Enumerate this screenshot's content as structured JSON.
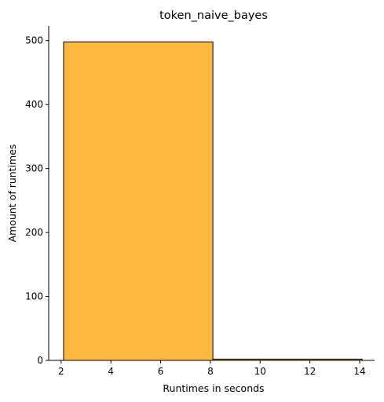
{
  "chart_data": {
    "type": "bar",
    "title": "token_naive_bayes",
    "xlabel": "Runtimes in seconds",
    "ylabel": "Amount of runtimes",
    "bins": [
      {
        "x0": 2.1,
        "x1": 8.1,
        "count": 498
      },
      {
        "x0": 8.1,
        "x1": 14.1,
        "count": 2
      }
    ],
    "xlim": [
      1.5,
      14.6
    ],
    "ylim": [
      0,
      523
    ],
    "xticks": [
      2,
      4,
      6,
      8,
      10,
      12,
      14
    ],
    "yticks": [
      0,
      100,
      200,
      300,
      400,
      500
    ],
    "bar_color": "#FFB83F",
    "edge_color": "#000000",
    "grid": false,
    "legend": "none"
  }
}
